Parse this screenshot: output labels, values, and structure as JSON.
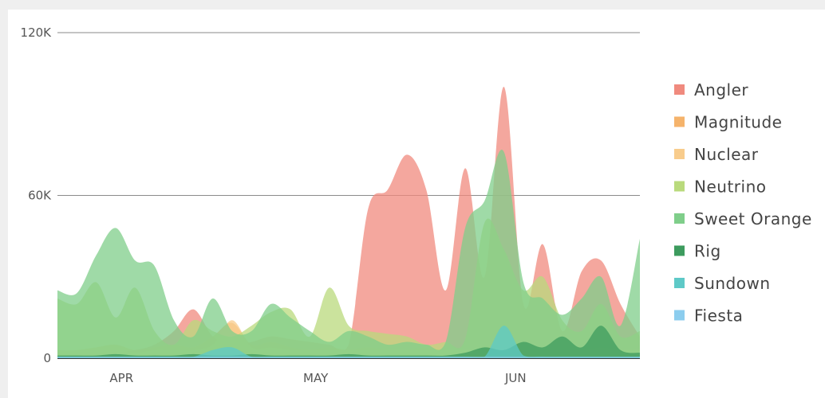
{
  "chart_data": {
    "type": "area",
    "title": "",
    "xlabel": "",
    "ylabel": "",
    "x_ticks": [
      "APR",
      "MAY",
      "JUN"
    ],
    "y_ticks": [
      "0",
      "60K",
      "120K"
    ],
    "ylim": [
      0,
      120000
    ],
    "grid": "horizontal",
    "legend_position": "right",
    "x": [
      "Mar 22",
      "Mar 25",
      "Mar 28",
      "Mar 31",
      "Apr 3",
      "Apr 6",
      "Apr 9",
      "Apr 12",
      "Apr 15",
      "Apr 18",
      "Apr 21",
      "Apr 24",
      "Apr 27",
      "Apr 30",
      "May 3",
      "May 6",
      "May 9",
      "May 12",
      "May 15",
      "May 18",
      "May 21",
      "May 24",
      "May 27",
      "May 30",
      "Jun 2",
      "Jun 5",
      "Jun 8",
      "Jun 11",
      "Jun 14",
      "Jun 17",
      "Jun 20"
    ],
    "series": [
      {
        "name": "Angler",
        "color": "#f08a7e",
        "values": [
          2000,
          2000,
          2500,
          2000,
          3000,
          5000,
          10000,
          18000,
          8000,
          5000,
          6000,
          8000,
          7000,
          6000,
          5000,
          5000,
          55000,
          62000,
          75000,
          62000,
          25000,
          70000,
          30000,
          100000,
          20000,
          42000,
          10000,
          32000,
          36000,
          20000,
          8000
        ]
      },
      {
        "name": "Magnitude",
        "color": "#f5b36b",
        "values": [
          3000,
          3000,
          4000,
          5000,
          3000,
          4000,
          5000,
          4000,
          8000,
          13000,
          5000,
          6000,
          4000,
          3000,
          4000,
          3000,
          4000,
          3000,
          3000,
          4000,
          3000,
          3000,
          3000,
          4000,
          3000,
          3000,
          3000,
          3000,
          4000,
          3000,
          3000
        ]
      },
      {
        "name": "Nuclear",
        "color": "#f8cc8c",
        "values": [
          2000,
          2000,
          3000,
          3000,
          2000,
          3000,
          3000,
          3000,
          5000,
          14000,
          4000,
          4000,
          3000,
          3000,
          3000,
          3000,
          3000,
          3000,
          3000,
          3000,
          3000,
          3000,
          3000,
          3000,
          3000,
          3000,
          3000,
          3000,
          3000,
          3000,
          3000
        ]
      },
      {
        "name": "Neutrino",
        "color": "#b9da7c",
        "values": [
          22000,
          20000,
          28000,
          15000,
          26000,
          10000,
          5000,
          14000,
          10000,
          8000,
          12000,
          17000,
          18000,
          8000,
          26000,
          12000,
          10000,
          9000,
          8000,
          5000,
          6000,
          7000,
          50000,
          40000,
          25000,
          30000,
          14000,
          10000,
          20000,
          8000,
          10000
        ]
      },
      {
        "name": "Sweet Orange",
        "color": "#7fce8a",
        "values": [
          25000,
          24000,
          38000,
          48000,
          36000,
          34000,
          14000,
          8000,
          22000,
          10000,
          10000,
          20000,
          15000,
          10000,
          6000,
          10000,
          8000,
          5000,
          6000,
          5000,
          6000,
          48000,
          58000,
          76000,
          28000,
          22000,
          16000,
          22000,
          30000,
          12000,
          44000
        ]
      },
      {
        "name": "Rig",
        "color": "#3d9b5e",
        "values": [
          1000,
          1000,
          1000,
          1500,
          1000,
          1000,
          1000,
          1500,
          1000,
          1000,
          1500,
          1000,
          1000,
          1000,
          1000,
          1500,
          1000,
          1000,
          1000,
          1000,
          1000,
          2000,
          4000,
          3000,
          6000,
          4000,
          8000,
          4000,
          12000,
          3000,
          2000
        ]
      },
      {
        "name": "Sundown",
        "color": "#5ec9c7",
        "values": [
          500,
          500,
          500,
          500,
          500,
          500,
          500,
          500,
          3000,
          4000,
          500,
          500,
          500,
          500,
          500,
          500,
          500,
          500,
          500,
          500,
          500,
          500,
          500,
          12000,
          1000,
          500,
          500,
          500,
          500,
          500,
          500
        ]
      },
      {
        "name": "Fiesta",
        "color": "#8ccdee",
        "values": [
          500,
          500,
          500,
          500,
          500,
          500,
          500,
          500,
          500,
          500,
          500,
          500,
          500,
          500,
          500,
          500,
          500,
          500,
          500,
          500,
          500,
          500,
          500,
          500,
          500,
          500,
          500,
          500,
          500,
          500,
          500
        ]
      }
    ]
  }
}
